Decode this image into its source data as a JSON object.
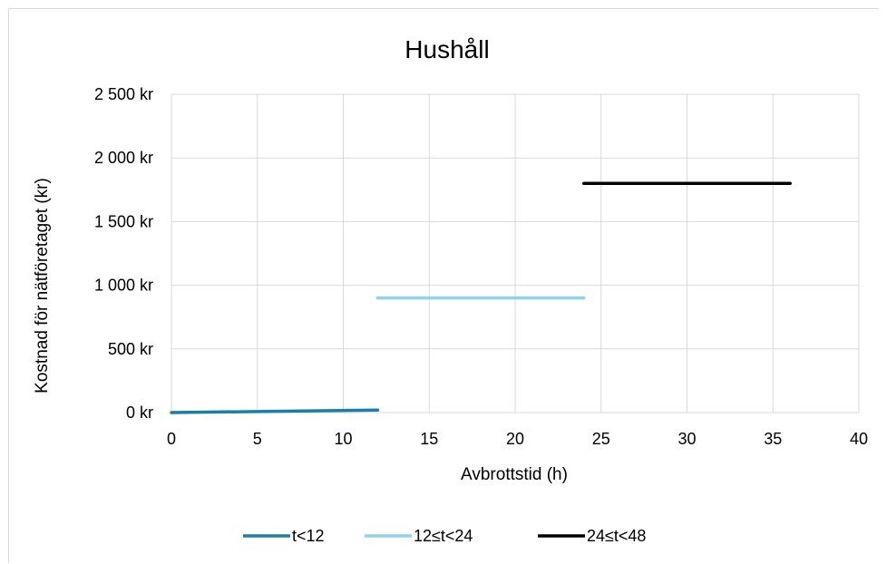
{
  "chart_data": {
    "type": "line",
    "title": "Hushåll",
    "xlabel": "Avbrottstid (h)",
    "ylabel": "Kostnad för nätföretaget (kr)",
    "xlim": [
      0,
      40
    ],
    "ylim": [
      0,
      2500
    ],
    "x_ticks": [
      "0",
      "5",
      "10",
      "15",
      "20",
      "25",
      "30",
      "35",
      "40"
    ],
    "y_ticks": [
      "0 kr",
      "500 kr",
      "1 000 kr",
      "1 500 kr",
      "2 000 kr",
      "2 500 kr"
    ],
    "grid": true,
    "legend_position": "bottom",
    "series": [
      {
        "name": "t<12",
        "color": "#1a7fa8",
        "x": [
          0,
          12
        ],
        "y": [
          0,
          20
        ]
      },
      {
        "name": "12≤t<24",
        "color": "#8fd1f0",
        "x": [
          12,
          24
        ],
        "y": [
          900,
          900
        ]
      },
      {
        "name": "24≤t<48",
        "color": "#000000",
        "x": [
          24,
          36
        ],
        "y": [
          1800,
          1800
        ]
      }
    ]
  }
}
